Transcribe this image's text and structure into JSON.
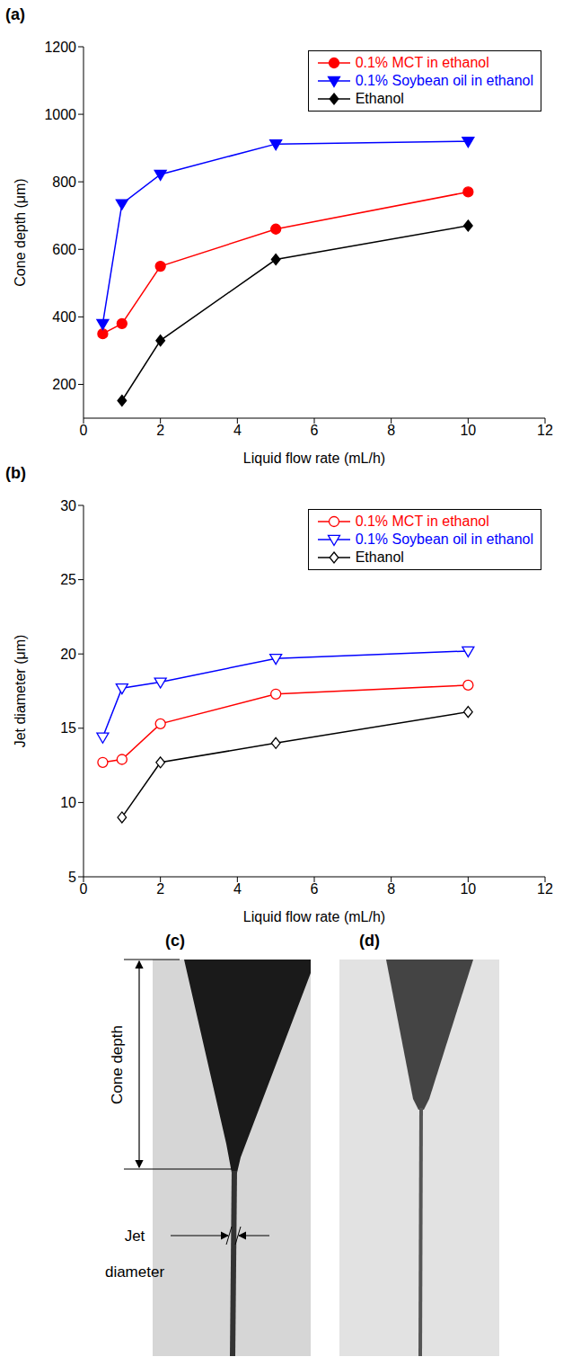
{
  "chart_data": [
    {
      "type": "line",
      "panel": "(a)",
      "x_label": "Liquid flow rate  (mL/h)",
      "y_label": "Cone depth  (μm)",
      "x": [
        0.5,
        1,
        2,
        5,
        10
      ],
      "series": [
        {
          "name": "0.1% MCT in ethanol",
          "color": "#ff0000",
          "marker": "circle",
          "values": [
            350,
            380,
            550,
            660,
            770
          ]
        },
        {
          "name": "0.1% Soybean oil in ethanol",
          "color": "#0000ff",
          "marker": "triangle_down",
          "values": [
            380,
            735,
            822,
            912,
            920
          ]
        },
        {
          "name": "Ethanol",
          "color": "#000000",
          "marker": "diamond",
          "values": [
            null,
            152,
            330,
            570,
            670
          ]
        }
      ],
      "xlim": [
        0,
        12
      ],
      "xticks": [
        0,
        2,
        4,
        6,
        8,
        10,
        12
      ],
      "ylim": [
        100,
        1200
      ],
      "yticks": [
        200,
        400,
        600,
        800,
        1000,
        1200
      ],
      "legend": "upper right"
    },
    {
      "type": "line",
      "panel": "(b)",
      "x_label": "Liquid flow rate  (mL/h)",
      "y_label": "Jet diameter (μm)",
      "x": [
        0.5,
        1,
        2,
        5,
        10
      ],
      "series": [
        {
          "name": "0.1% MCT in ethanol",
          "color": "#ff0000",
          "marker": "circle_open",
          "values": [
            12.7,
            12.9,
            15.3,
            17.3,
            17.9
          ]
        },
        {
          "name": "0.1% Soybean oil in ethanol",
          "color": "#0000ff",
          "marker": "triangle_down_open",
          "values": [
            14.4,
            17.7,
            18.1,
            19.7,
            20.2
          ]
        },
        {
          "name": "Ethanol",
          "color": "#000000",
          "marker": "diamond_open",
          "values": [
            null,
            9.0,
            12.7,
            14.0,
            16.1
          ]
        }
      ],
      "xlim": [
        0,
        12
      ],
      "xticks": [
        0,
        2,
        4,
        6,
        8,
        10,
        12
      ],
      "ylim": [
        5,
        30
      ],
      "yticks": [
        5,
        10,
        15,
        20,
        25,
        30
      ],
      "legend": "upper right"
    }
  ],
  "images": [
    {
      "panel": "(c)",
      "annotations": [
        "Cone depth",
        "Jet diameter"
      ]
    },
    {
      "panel": "(d)"
    }
  ]
}
